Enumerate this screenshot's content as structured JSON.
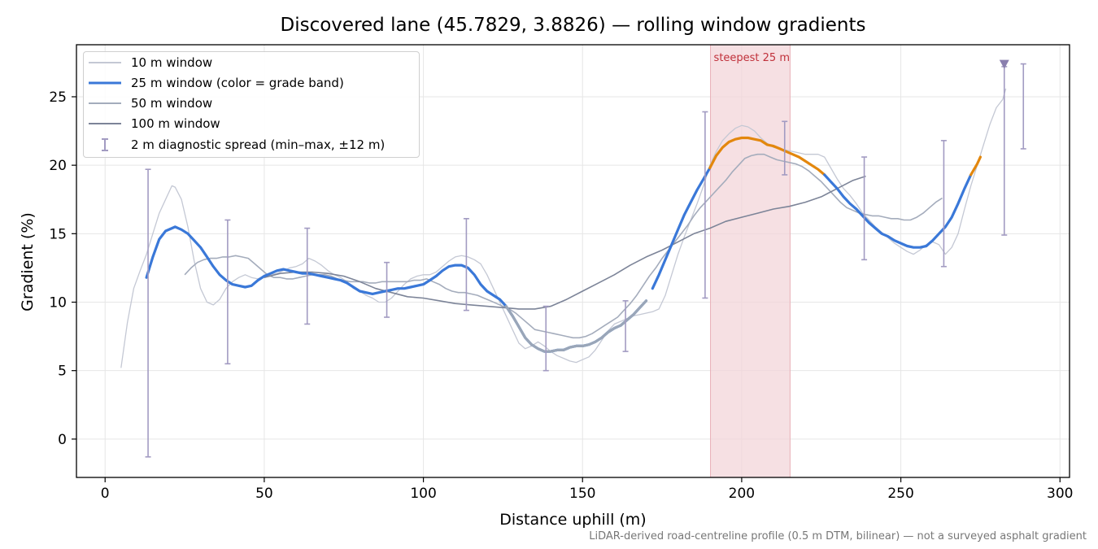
{
  "chart_data": {
    "type": "line",
    "title": "Discovered lane (45.7829, 3.8826) — rolling window gradients",
    "xlabel": "Distance uphill (m)",
    "ylabel": "Gradient (%)",
    "xlim": [
      -9,
      303
    ],
    "ylim": [
      -2.8,
      28.8
    ],
    "xticks": [
      0,
      50,
      100,
      150,
      200,
      250,
      300
    ],
    "yticks": [
      0,
      5,
      10,
      15,
      20,
      25
    ],
    "grid": true,
    "legend_position": "upper-left",
    "footnote": "LiDAR-derived road-centreline profile (0.5 m DTM, bilinear) — not a surveyed asphalt gradient",
    "highlight": {
      "x_start": 190.2,
      "x_end": 215.2,
      "label": "steepest 25 m",
      "color": "#f3d6da"
    },
    "series": [
      {
        "name": "10 m window",
        "color": "#c4c8d4",
        "width": 1.3,
        "x": [
          5,
          7,
          9,
          11,
          13,
          15,
          17,
          19,
          21,
          22,
          24,
          26,
          28,
          30,
          32,
          34,
          36,
          38,
          40,
          42,
          44,
          46,
          48,
          50,
          52,
          54,
          56,
          58,
          60,
          62,
          64,
          66,
          68,
          70,
          72,
          74,
          76,
          78,
          80,
          82,
          84,
          86,
          88,
          90,
          92,
          94,
          96,
          98,
          100,
          102,
          104,
          106,
          108,
          110,
          112,
          114,
          116,
          118,
          120,
          122,
          124,
          126,
          128,
          130,
          132,
          134,
          136,
          138,
          140,
          142,
          144,
          146,
          148,
          150,
          152,
          154,
          156,
          158,
          160,
          162,
          164,
          166,
          168,
          170,
          172,
          174,
          176,
          178,
          180,
          182,
          184,
          186,
          188,
          190,
          192,
          194,
          196,
          198,
          200,
          202,
          204,
          206,
          208,
          210,
          212,
          214,
          216,
          218,
          220,
          222,
          224,
          226,
          228,
          230,
          232,
          234,
          236,
          238,
          240,
          242,
          244,
          246,
          248,
          250,
          252,
          254,
          256,
          258,
          260,
          262,
          264,
          266,
          268,
          270,
          272,
          274,
          276,
          278,
          280,
          282,
          283
        ],
        "values": [
          5.2,
          8.5,
          11.0,
          12.3,
          13.5,
          15.0,
          16.5,
          17.5,
          18.5,
          18.4,
          17.5,
          15.5,
          13.0,
          11.0,
          10.0,
          9.8,
          10.2,
          11.0,
          11.5,
          11.8,
          12.0,
          11.8,
          11.7,
          11.9,
          12.0,
          12.1,
          12.3,
          12.5,
          12.6,
          12.8,
          13.2,
          13.0,
          12.7,
          12.3,
          12.0,
          11.8,
          11.5,
          11.0,
          10.8,
          10.5,
          10.3,
          10.0,
          10.0,
          10.3,
          10.8,
          11.3,
          11.7,
          11.9,
          12.0,
          12.0,
          12.2,
          12.6,
          13.0,
          13.3,
          13.4,
          13.3,
          13.1,
          12.8,
          12.0,
          11.0,
          10.0,
          9.0,
          8.0,
          7.0,
          6.6,
          6.8,
          7.1,
          6.8,
          6.4,
          6.1,
          5.9,
          5.7,
          5.6,
          5.8,
          6.0,
          6.5,
          7.2,
          7.9,
          8.4,
          8.6,
          8.8,
          9.0,
          9.1,
          9.2,
          9.3,
          9.5,
          10.5,
          12.0,
          13.5,
          14.8,
          16.0,
          17.2,
          18.5,
          20.0,
          21.0,
          21.8,
          22.3,
          22.7,
          22.9,
          22.8,
          22.5,
          22.0,
          21.6,
          21.3,
          21.2,
          21.1,
          21.0,
          20.9,
          20.8,
          20.8,
          20.8,
          20.6,
          19.8,
          19.0,
          18.3,
          17.8,
          17.2,
          16.5,
          16.0,
          15.5,
          15.1,
          14.7,
          14.3,
          14.0,
          13.7,
          13.5,
          13.8,
          14.2,
          14.4,
          14.2,
          13.5,
          14.0,
          15.0,
          16.8,
          18.5,
          20.0,
          21.5,
          23.0,
          24.2,
          24.8,
          25.6
        ]
      },
      {
        "name": "25 m window (color = grade band)",
        "color": "#3a78d8",
        "width": 3.2,
        "x": [
          13,
          15,
          17,
          19,
          21,
          22,
          24,
          26,
          28,
          30,
          32,
          34,
          36,
          38,
          40,
          42,
          44,
          46,
          48,
          50,
          52,
          54,
          56,
          58,
          60,
          62,
          64,
          66,
          68,
          70,
          72,
          74,
          76,
          78,
          80,
          82,
          84,
          86,
          88,
          90,
          92,
          94,
          96,
          98,
          100,
          102,
          104,
          106,
          108,
          110,
          112,
          114,
          116,
          118,
          120,
          122,
          124,
          126,
          128,
          130,
          132,
          134,
          136,
          138,
          140,
          142,
          144,
          146,
          148,
          150,
          152,
          154,
          156,
          158,
          160,
          162,
          164,
          166,
          168,
          170,
          172,
          174,
          176,
          178,
          180,
          182,
          184,
          186,
          188,
          190,
          192,
          194,
          196,
          198,
          200,
          202,
          204,
          206,
          208,
          210,
          212,
          214,
          216,
          218,
          220,
          222,
          224,
          226,
          228,
          230,
          232,
          234,
          236,
          238,
          240,
          242,
          244,
          246,
          248,
          250,
          252,
          254,
          256,
          258,
          260,
          262,
          264,
          266,
          268,
          270,
          272,
          274,
          275
        ],
        "values": [
          11.8,
          13.3,
          14.6,
          15.2,
          15.4,
          15.5,
          15.3,
          15.0,
          14.5,
          14.0,
          13.3,
          12.6,
          12.0,
          11.6,
          11.3,
          11.2,
          11.1,
          11.2,
          11.6,
          11.9,
          12.1,
          12.3,
          12.4,
          12.3,
          12.2,
          12.1,
          12.1,
          12.0,
          11.9,
          11.8,
          11.7,
          11.6,
          11.4,
          11.1,
          10.8,
          10.7,
          10.6,
          10.7,
          10.8,
          10.9,
          11.0,
          11.0,
          11.1,
          11.2,
          11.3,
          11.6,
          11.9,
          12.3,
          12.6,
          12.7,
          12.7,
          12.5,
          12.0,
          11.3,
          10.8,
          10.5,
          10.2,
          9.7,
          9.0,
          8.2,
          7.4,
          6.9,
          6.6,
          6.4,
          6.4,
          6.5,
          6.5,
          6.7,
          6.8,
          6.8,
          6.9,
          7.1,
          7.4,
          7.8,
          8.1,
          8.3,
          8.7,
          9.1,
          9.6,
          10.1,
          11.0,
          12.0,
          13.1,
          14.2,
          15.3,
          16.4,
          17.3,
          18.2,
          19.0,
          19.8,
          20.7,
          21.3,
          21.7,
          21.9,
          22.0,
          22.0,
          21.9,
          21.8,
          21.5,
          21.4,
          21.2,
          21.0,
          20.8,
          20.6,
          20.3,
          20.0,
          19.7,
          19.3,
          18.8,
          18.3,
          17.7,
          17.2,
          16.8,
          16.3,
          15.8,
          15.4,
          15.0,
          14.8,
          14.5,
          14.3,
          14.1,
          14.0,
          14.0,
          14.1,
          14.5,
          15.0,
          15.5,
          16.2,
          17.2,
          18.3,
          19.3,
          20.1,
          20.6
        ],
        "color_bands": [
          {
            "x_start": 13,
            "x_end": 171,
            "color": "#3a78d8"
          },
          {
            "x_start": 126,
            "x_end": 171,
            "color": "#9aa6b8"
          },
          {
            "x_start": 171,
            "x_end": 190,
            "color": "#3a78d8"
          },
          {
            "x_start": 190,
            "x_end": 226,
            "color": "#e3870d"
          },
          {
            "x_start": 226,
            "x_end": 272,
            "color": "#3a78d8"
          },
          {
            "x_start": 272,
            "x_end": 275,
            "color": "#e3870d"
          }
        ]
      },
      {
        "name": "50 m window",
        "color": "#a4acbc",
        "width": 1.6,
        "x": [
          25,
          27,
          29,
          31,
          33,
          35,
          37,
          39,
          41,
          43,
          45,
          47,
          49,
          51,
          53,
          55,
          57,
          59,
          61,
          63,
          65,
          67,
          69,
          71,
          73,
          75,
          77,
          79,
          81,
          83,
          85,
          87,
          89,
          91,
          93,
          95,
          97,
          99,
          101,
          103,
          105,
          107,
          109,
          111,
          113,
          115,
          117,
          119,
          121,
          123,
          125,
          127,
          129,
          131,
          133,
          135,
          137,
          139,
          141,
          143,
          145,
          147,
          149,
          151,
          153,
          155,
          157,
          159,
          161,
          163,
          165,
          167,
          169,
          171,
          173,
          175,
          177,
          179,
          181,
          183,
          185,
          187,
          189,
          191,
          193,
          195,
          197,
          199,
          201,
          203,
          205,
          207,
          209,
          211,
          213,
          215,
          217,
          219,
          221,
          223,
          225,
          227,
          229,
          231,
          233,
          235,
          237,
          239,
          241,
          243,
          245,
          247,
          249,
          251,
          253,
          255,
          257,
          259,
          261,
          263
        ],
        "values": [
          12.0,
          12.5,
          12.9,
          13.1,
          13.2,
          13.2,
          13.3,
          13.3,
          13.4,
          13.3,
          13.2,
          12.8,
          12.4,
          12.0,
          11.8,
          11.8,
          11.7,
          11.7,
          11.8,
          11.9,
          12.0,
          12.0,
          12.0,
          11.9,
          11.7,
          11.6,
          11.5,
          11.5,
          11.5,
          11.4,
          11.4,
          11.5,
          11.5,
          11.5,
          11.5,
          11.5,
          11.6,
          11.6,
          11.7,
          11.5,
          11.3,
          11.0,
          10.8,
          10.7,
          10.7,
          10.6,
          10.5,
          10.3,
          10.1,
          9.9,
          9.7,
          9.5,
          9.2,
          8.8,
          8.4,
          8.0,
          7.9,
          7.8,
          7.7,
          7.6,
          7.5,
          7.4,
          7.4,
          7.5,
          7.7,
          8.0,
          8.3,
          8.6,
          8.9,
          9.4,
          9.9,
          10.5,
          11.2,
          11.9,
          12.5,
          13.2,
          13.8,
          14.4,
          15.0,
          15.6,
          16.3,
          16.9,
          17.4,
          17.9,
          18.4,
          18.9,
          19.5,
          20.0,
          20.5,
          20.7,
          20.8,
          20.8,
          20.6,
          20.4,
          20.3,
          20.2,
          20.1,
          19.9,
          19.6,
          19.2,
          18.8,
          18.3,
          17.8,
          17.3,
          16.9,
          16.7,
          16.5,
          16.4,
          16.3,
          16.3,
          16.2,
          16.1,
          16.1,
          16.0,
          16.0,
          16.2,
          16.5,
          16.9,
          17.3,
          17.6
        ]
      },
      {
        "name": "100 m window",
        "color": "#7c8498",
        "width": 1.6,
        "x": [
          50,
          55,
          60,
          65,
          70,
          75,
          80,
          85,
          90,
          95,
          100,
          105,
          110,
          115,
          120,
          125,
          130,
          135,
          140,
          145,
          150,
          155,
          160,
          165,
          170,
          175,
          180,
          185,
          190,
          195,
          200,
          205,
          210,
          215,
          220,
          225,
          230,
          235,
          239
        ],
        "values": [
          11.8,
          12.1,
          12.2,
          12.2,
          12.1,
          11.9,
          11.5,
          11.0,
          10.7,
          10.4,
          10.3,
          10.1,
          9.9,
          9.8,
          9.7,
          9.6,
          9.5,
          9.5,
          9.7,
          10.2,
          10.8,
          11.4,
          12.0,
          12.7,
          13.3,
          13.8,
          14.4,
          15.0,
          15.4,
          15.9,
          16.2,
          16.5,
          16.8,
          17.0,
          17.3,
          17.7,
          18.3,
          18.9,
          19.2
        ]
      }
    ],
    "error_bars": {
      "name": "2 m diagnostic spread (min–max, ±12 m)",
      "color": "#a29bc2",
      "points": [
        {
          "x": 13.5,
          "low": -1.3,
          "high": 19.7
        },
        {
          "x": 38.5,
          "low": 5.5,
          "high": 16.0
        },
        {
          "x": 63.5,
          "low": 8.4,
          "high": 15.4
        },
        {
          "x": 88.5,
          "low": 8.9,
          "high": 12.9
        },
        {
          "x": 113.5,
          "low": 9.4,
          "high": 16.1
        },
        {
          "x": 138.5,
          "low": 5.0,
          "high": 9.7
        },
        {
          "x": 163.5,
          "low": 6.4,
          "high": 10.1
        },
        {
          "x": 188.5,
          "low": 10.3,
          "high": 23.9
        },
        {
          "x": 213.5,
          "low": 19.3,
          "high": 23.2
        },
        {
          "x": 238.5,
          "low": 13.1,
          "high": 20.6
        },
        {
          "x": 263.5,
          "low": 12.6,
          "high": 21.8
        },
        {
          "x": 282.5,
          "low": 14.9,
          "high": 27.2
        },
        {
          "x": 288.5,
          "low": 21.2,
          "high": 27.4
        }
      ]
    },
    "marker": {
      "x": 282.5,
      "y": 27.4,
      "shape": "triangle-down",
      "color": "#8a7fae"
    }
  }
}
